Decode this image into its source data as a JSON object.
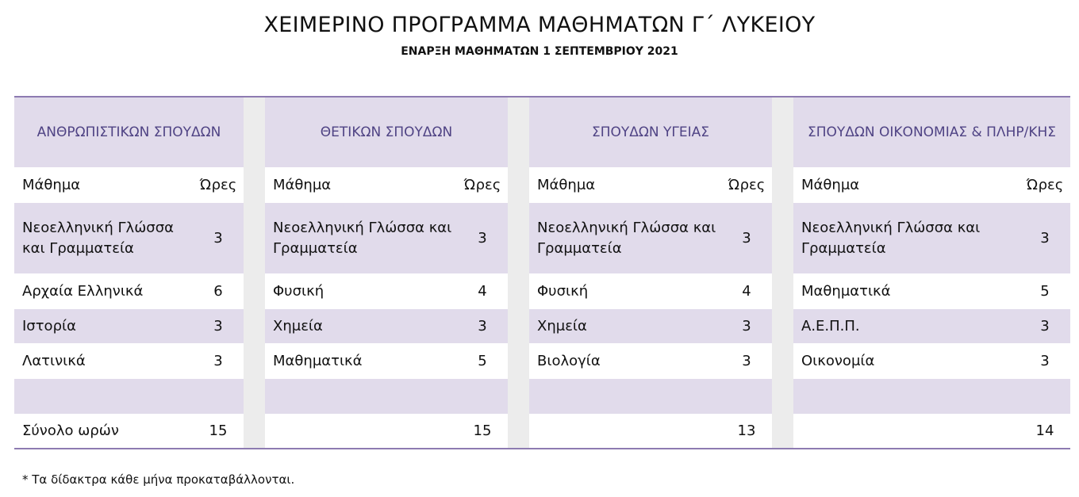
{
  "title": "ΧΕΙΜΕΡΙΝΟ ΠΡΟΓΡΑΜΜΑ ΜΑΘΗΜΑΤΩΝ Γ΄ ΛΥΚΕΙΟΥ",
  "subtitle": "ΕΝΑΡΞΗ ΜΑΘΗΜΑΤΩΝ 1 ΣΕΠΤΕΜΒΡΙΟΥ 2021",
  "colors": {
    "accent_line": "#8d7bb1",
    "header_text": "#4f4384",
    "shade": "#e1dbeb",
    "separator": "#ececec"
  },
  "subject_label": "Μάθημα",
  "hours_label": "Ώρες",
  "total_label": "Σύνολο ωρών",
  "columns": [
    {
      "header": "ΑΝΘΡΩΠΙΣΤΙΚΩΝ ΣΠΟΥΔΩΝ",
      "rows": [
        {
          "subject": "Νεοελληνική Γλώσσα και Γραμματεία",
          "hours": "3"
        },
        {
          "subject": "Αρχαία Ελληνικά",
          "hours": "6"
        },
        {
          "subject": "Ιστορία",
          "hours": "3"
        },
        {
          "subject": "Λατινικά",
          "hours": "3"
        }
      ],
      "total": "15"
    },
    {
      "header": "ΘΕΤΙΚΩΝ ΣΠΟΥΔΩΝ",
      "rows": [
        {
          "subject": "Νεοελληνική Γλώσσα και Γραμματεία",
          "hours": "3"
        },
        {
          "subject": "Φυσική",
          "hours": "4"
        },
        {
          "subject": "Χημεία",
          "hours": "3"
        },
        {
          "subject": "Μαθηματικά",
          "hours": "5"
        }
      ],
      "total": "15"
    },
    {
      "header": "ΣΠΟΥΔΩΝ ΥΓΕΙΑΣ",
      "rows": [
        {
          "subject": "Νεοελληνική Γλώσσα και Γραμματεία",
          "hours": "3"
        },
        {
          "subject": "Φυσική",
          "hours": "4"
        },
        {
          "subject": "Χημεία",
          "hours": "3"
        },
        {
          "subject": "Βιολογία",
          "hours": "3"
        }
      ],
      "total": "13"
    },
    {
      "header": "ΣΠΟΥΔΩΝ ΟΙΚΟΝΟΜΙΑΣ & ΠΛΗΡ/ΚΗΣ",
      "rows": [
        {
          "subject": "Νεοελληνική Γλώσσα και Γραμματεία",
          "hours": "3"
        },
        {
          "subject": "Μαθηματικά",
          "hours": "5"
        },
        {
          "subject": "Α.Ε.Π.Π.",
          "hours": "3"
        },
        {
          "subject": "Οικονομία",
          "hours": "3"
        }
      ],
      "total": "14"
    }
  ],
  "footnote": "* Τα δίδακτρα κάθε μήνα προκαταβάλλονται."
}
